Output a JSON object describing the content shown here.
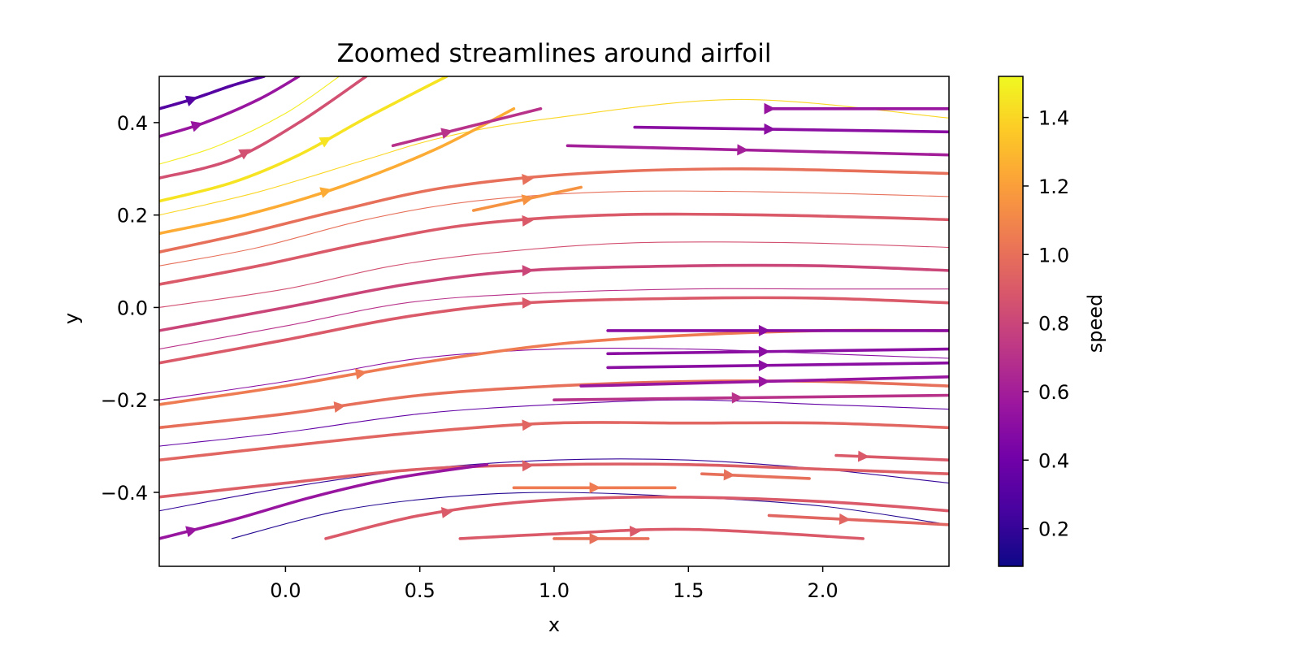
{
  "chart_data": {
    "type": "streamplot",
    "title": "Zoomed streamlines around airfoil",
    "xlabel": "x",
    "ylabel": "y",
    "xlim": [
      -0.47,
      2.47
    ],
    "ylim": [
      -0.56,
      0.5
    ],
    "xticks": [
      {
        "value": 0.0,
        "label": "0.0"
      },
      {
        "value": 0.5,
        "label": "0.5"
      },
      {
        "value": 1.0,
        "label": "1.0"
      },
      {
        "value": 1.5,
        "label": "1.5"
      },
      {
        "value": 2.0,
        "label": "2.0"
      }
    ],
    "yticks": [
      {
        "value": -0.4,
        "label": "−0.4"
      },
      {
        "value": -0.2,
        "label": "−0.2"
      },
      {
        "value": 0.0,
        "label": "0.0"
      },
      {
        "value": 0.2,
        "label": "0.2"
      },
      {
        "value": 0.4,
        "label": "0.4"
      }
    ],
    "colorbar": {
      "label": "speed",
      "colormap": "plasma",
      "range": [
        0.09,
        1.52
      ],
      "ticks": [
        {
          "value": 0.2,
          "label": "0.2"
        },
        {
          "value": 0.4,
          "label": "0.4"
        },
        {
          "value": 0.6,
          "label": "0.6"
        },
        {
          "value": 0.8,
          "label": "0.8"
        },
        {
          "value": 1.0,
          "label": "1.0"
        },
        {
          "value": 1.2,
          "label": "1.2"
        },
        {
          "value": 1.4,
          "label": "1.4"
        }
      ]
    },
    "colormap_stops": [
      "#0d0887",
      "#46039f",
      "#7201a8",
      "#9c179e",
      "#bd3786",
      "#d8576b",
      "#ed7953",
      "#fb9f3a",
      "#fdca26",
      "#f0f921"
    ],
    "streamlines": [
      {
        "speed": 0.3,
        "x": [
          -0.47,
          -0.35,
          -0.2,
          -0.08
        ],
        "y": [
          0.43,
          0.45,
          0.48,
          0.5
        ],
        "arrow": -0.35
      },
      {
        "speed": 0.55,
        "x": [
          -0.47,
          -0.3,
          -0.1,
          0.05
        ],
        "y": [
          0.37,
          0.4,
          0.45,
          0.5
        ],
        "arrow": -0.33
      },
      {
        "speed": 0.85,
        "x": [
          -0.47,
          -0.2,
          0.05,
          0.3
        ],
        "y": [
          0.28,
          0.32,
          0.4,
          0.5
        ],
        "arrow": -0.15
      },
      {
        "speed": 1.45,
        "x": [
          -0.47,
          -0.2,
          0.05,
          0.3,
          0.6
        ],
        "y": [
          0.23,
          0.27,
          0.33,
          0.41,
          0.5
        ],
        "arrow": 0.15
      },
      {
        "speed": 1.25,
        "x": [
          -0.47,
          -0.15,
          0.2,
          0.55,
          0.85
        ],
        "y": [
          0.16,
          0.2,
          0.26,
          0.34,
          0.43
        ],
        "arrow": 0.15
      },
      {
        "speed": 1.0,
        "x": [
          -0.47,
          -0.15,
          0.2,
          0.6,
          1.1,
          1.7,
          2.47
        ],
        "y": [
          0.12,
          0.16,
          0.21,
          0.26,
          0.29,
          0.3,
          0.29
        ],
        "arrow": 0.9
      },
      {
        "speed": 0.9,
        "x": [
          -0.47,
          -0.1,
          0.3,
          0.7,
          1.2,
          1.8,
          2.47
        ],
        "y": [
          0.05,
          0.09,
          0.14,
          0.18,
          0.2,
          0.2,
          0.19
        ],
        "arrow": 0.9
      },
      {
        "speed": 0.8,
        "x": [
          -0.47,
          0.0,
          0.45,
          0.9,
          1.5,
          2.0,
          2.47
        ],
        "y": [
          -0.05,
          0.0,
          0.05,
          0.08,
          0.09,
          0.09,
          0.08
        ],
        "arrow": 0.9
      },
      {
        "speed": 0.9,
        "x": [
          -0.47,
          0.0,
          0.45,
          0.9,
          1.5,
          2.0,
          2.47
        ],
        "y": [
          -0.12,
          -0.07,
          -0.02,
          0.01,
          0.02,
          0.02,
          0.01
        ],
        "arrow": 0.9
      },
      {
        "speed": 1.05,
        "x": [
          -0.47,
          0.0,
          0.5,
          1.0,
          1.5,
          2.0,
          2.47
        ],
        "y": [
          -0.21,
          -0.17,
          -0.12,
          -0.08,
          -0.06,
          -0.05,
          -0.05
        ],
        "arrow": 0.28
      },
      {
        "speed": 1.0,
        "x": [
          -0.47,
          0.0,
          0.5,
          1.0,
          1.5,
          2.0,
          2.47
        ],
        "y": [
          -0.26,
          -0.23,
          -0.19,
          -0.17,
          -0.16,
          -0.16,
          -0.17
        ],
        "arrow": 0.2
      },
      {
        "speed": 0.95,
        "x": [
          -0.47,
          0.0,
          0.5,
          1.0,
          1.5,
          2.0,
          2.47
        ],
        "y": [
          -0.33,
          -0.3,
          -0.27,
          -0.25,
          -0.25,
          -0.25,
          -0.26
        ],
        "arrow": 0.9
      },
      {
        "speed": 0.92,
        "x": [
          -0.47,
          0.0,
          0.5,
          1.0,
          1.5,
          2.0,
          2.47
        ],
        "y": [
          -0.41,
          -0.38,
          -0.35,
          -0.34,
          -0.34,
          -0.35,
          -0.36
        ],
        "arrow": 0.9
      },
      {
        "speed": 0.55,
        "x": [
          -0.47,
          -0.2,
          0.1,
          0.4,
          0.75
        ],
        "y": [
          -0.5,
          -0.46,
          -0.41,
          -0.37,
          -0.34
        ],
        "arrow": -0.35
      },
      {
        "speed": 0.9,
        "x": [
          0.15,
          0.5,
          0.9,
          1.4,
          2.0,
          2.47
        ],
        "y": [
          -0.5,
          -0.45,
          -0.42,
          -0.41,
          -0.42,
          -0.44
        ],
        "arrow": 0.6
      },
      {
        "speed": 0.9,
        "x": [
          0.65,
          1.0,
          1.5,
          2.15
        ],
        "y": [
          -0.5,
          -0.49,
          -0.48,
          -0.5
        ],
        "arrow": 1.3
      }
    ],
    "thin_streamlines": [
      {
        "speed": 1.48,
        "x": [
          -0.47,
          -0.25,
          0.0,
          0.2
        ],
        "y": [
          0.31,
          0.35,
          0.42,
          0.5
        ]
      },
      {
        "speed": 1.4,
        "x": [
          -0.47,
          -0.1,
          0.3,
          0.6,
          1.0,
          1.7,
          2.47
        ],
        "y": [
          0.2,
          0.25,
          0.32,
          0.37,
          0.41,
          0.45,
          0.41
        ]
      },
      {
        "speed": 1.0,
        "x": [
          -0.47,
          -0.1,
          0.3,
          0.7,
          1.2,
          1.8,
          2.47
        ],
        "y": [
          0.09,
          0.13,
          0.19,
          0.23,
          0.25,
          0.25,
          0.24
        ]
      },
      {
        "speed": 0.85,
        "x": [
          -0.47,
          0.0,
          0.4,
          0.8,
          1.3,
          1.9,
          2.47
        ],
        "y": [
          0.0,
          0.04,
          0.09,
          0.12,
          0.14,
          0.14,
          0.13
        ]
      },
      {
        "speed": 0.7,
        "x": [
          -0.47,
          0.0,
          0.45,
          0.9,
          1.5,
          2.0,
          2.47
        ],
        "y": [
          -0.09,
          -0.04,
          0.01,
          0.03,
          0.04,
          0.04,
          0.04
        ]
      },
      {
        "speed": 0.5,
        "x": [
          -0.47,
          0.0,
          0.5,
          1.0,
          1.5,
          2.0,
          2.47
        ],
        "y": [
          -0.2,
          -0.16,
          -0.11,
          -0.09,
          -0.09,
          -0.1,
          -0.11
        ]
      },
      {
        "speed": 0.35,
        "x": [
          -0.47,
          0.0,
          0.5,
          1.0,
          1.5,
          2.0,
          2.47
        ],
        "y": [
          -0.3,
          -0.27,
          -0.23,
          -0.21,
          -0.2,
          -0.21,
          -0.22
        ]
      },
      {
        "speed": 0.2,
        "x": [
          -0.47,
          0.0,
          0.5,
          1.0,
          1.5,
          2.0,
          2.47
        ],
        "y": [
          -0.44,
          -0.39,
          -0.35,
          -0.33,
          -0.33,
          -0.35,
          -0.38
        ]
      },
      {
        "speed": 0.15,
        "x": [
          -0.2,
          0.2,
          0.6,
          1.0,
          1.5,
          2.0,
          2.47
        ],
        "y": [
          -0.5,
          -0.44,
          -0.41,
          -0.4,
          -0.41,
          -0.43,
          -0.47
        ]
      }
    ],
    "short_segments": [
      {
        "speed": 0.55,
        "x": [
          1.8,
          2.47
        ],
        "y": [
          0.43,
          0.43
        ],
        "arrow": 1.8
      },
      {
        "speed": 0.5,
        "x": [
          1.3,
          2.47
        ],
        "y": [
          0.39,
          0.38
        ],
        "arrow": 1.8
      },
      {
        "speed": 0.6,
        "x": [
          1.05,
          2.47
        ],
        "y": [
          0.35,
          0.33
        ],
        "arrow": 1.7
      },
      {
        "speed": 0.5,
        "x": [
          1.2,
          2.47
        ],
        "y": [
          -0.05,
          -0.05
        ],
        "arrow": 1.78
      },
      {
        "speed": 0.5,
        "x": [
          1.2,
          2.47
        ],
        "y": [
          -0.1,
          -0.09
        ],
        "arrow": 1.78
      },
      {
        "speed": 0.5,
        "x": [
          1.2,
          2.47
        ],
        "y": [
          -0.13,
          -0.12
        ],
        "arrow": 1.78
      },
      {
        "speed": 0.55,
        "x": [
          1.1,
          2.47
        ],
        "y": [
          -0.17,
          -0.15
        ],
        "arrow": 1.78
      },
      {
        "speed": 0.7,
        "x": [
          1.0,
          2.47
        ],
        "y": [
          -0.2,
          -0.19
        ],
        "arrow": 1.68
      },
      {
        "speed": 0.9,
        "x": [
          2.05,
          2.47
        ],
        "y": [
          -0.32,
          -0.33
        ],
        "arrow": 2.15
      },
      {
        "speed": 1.0,
        "x": [
          1.55,
          1.95
        ],
        "y": [
          -0.36,
          -0.37
        ],
        "arrow": 1.65
      },
      {
        "speed": 1.05,
        "x": [
          0.85,
          1.45
        ],
        "y": [
          -0.39,
          -0.39
        ],
        "arrow": 1.15
      },
      {
        "speed": 0.95,
        "x": [
          1.8,
          2.47
        ],
        "y": [
          -0.45,
          -0.47
        ],
        "arrow": 2.08
      },
      {
        "speed": 1.0,
        "x": [
          1.0,
          1.35
        ],
        "y": [
          -0.5,
          -0.5
        ],
        "arrow": 1.15
      },
      {
        "speed": 1.15,
        "x": [
          0.7,
          1.1
        ],
        "y": [
          0.21,
          0.26
        ],
        "arrow": 0.9
      },
      {
        "speed": 0.7,
        "x": [
          0.4,
          0.95
        ],
        "y": [
          0.35,
          0.43
        ],
        "arrow": 0.6
      }
    ]
  }
}
